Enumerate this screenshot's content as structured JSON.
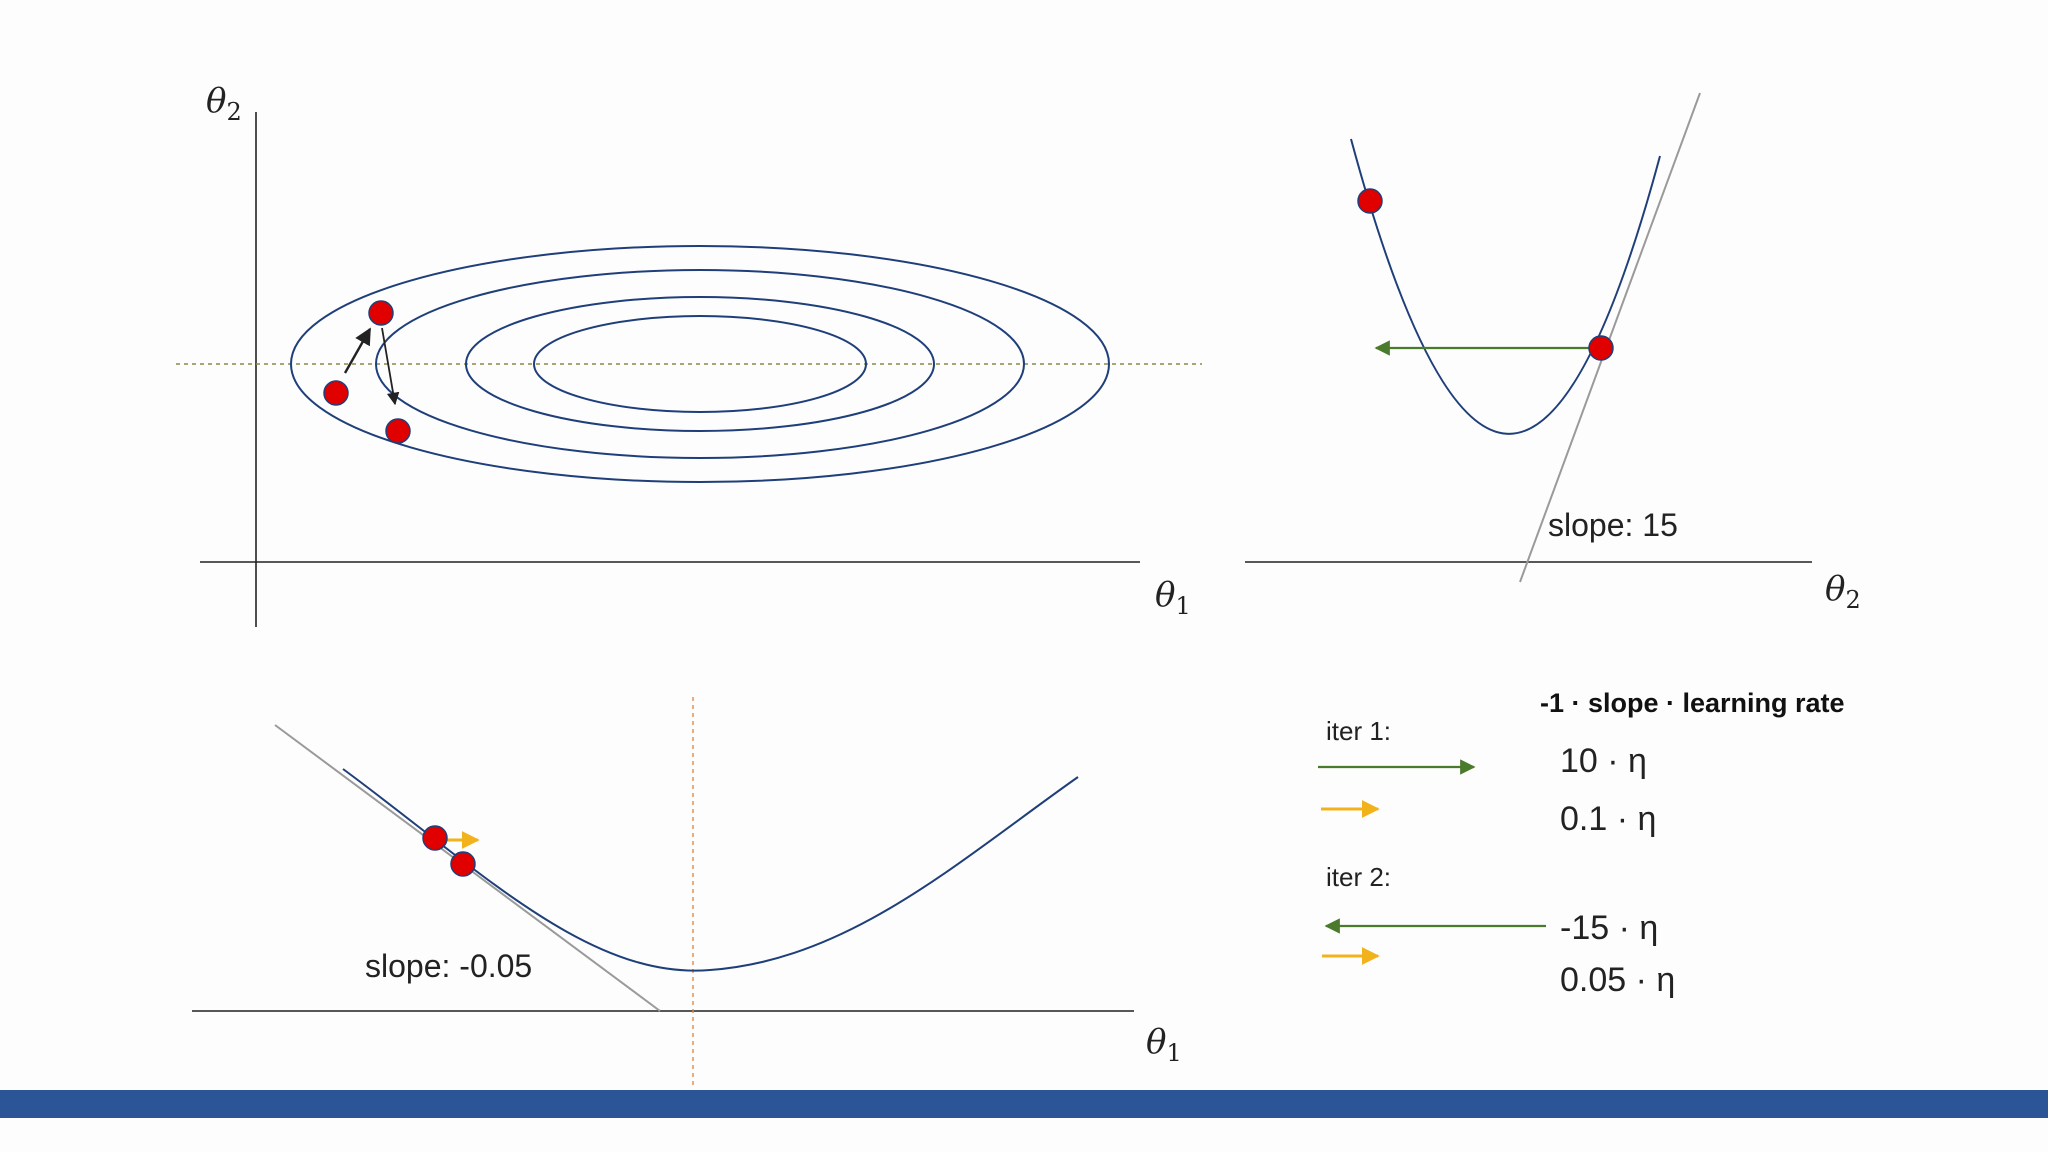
{
  "colors": {
    "contour": "#1f3f7a",
    "axis": "#222222",
    "point": "#e00000",
    "green_arrow": "#4a7a2c",
    "orange_arrow": "#f2b21b",
    "tangent": "#9a9a9a",
    "dashed": "#8a8a4a",
    "bar": "#2b5597"
  },
  "panels": {
    "contour": {
      "y_axis_label": "θ",
      "y_axis_sub": "2",
      "x_axis_label": "θ",
      "x_axis_sub": "1"
    },
    "theta2_curve": {
      "slope_label": "slope: 15",
      "x_axis_label": "θ",
      "x_axis_sub": "2"
    },
    "theta1_curve": {
      "slope_label": "slope: -0.05",
      "x_axis_label": "θ",
      "x_axis_sub": "1"
    }
  },
  "legend": {
    "header": "-1 · slope · learning rate",
    "iter1_label": "iter 1:",
    "iter1_green": "10 · η",
    "iter1_orange": "0.1 · η",
    "iter2_label": "iter 2:",
    "iter2_green": "-15 · η",
    "iter2_orange": "0.05 · η"
  }
}
